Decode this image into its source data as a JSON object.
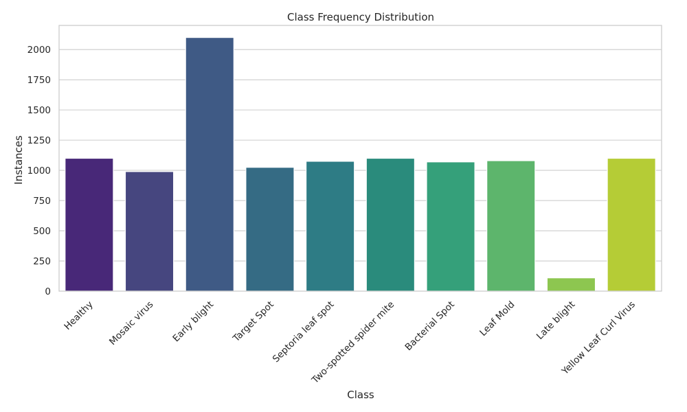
{
  "chart_data": {
    "type": "bar",
    "title": "Class Frequency Distribution",
    "xlabel": "Class",
    "ylabel": "Instances",
    "categories": [
      "Healthy",
      "Mosaic virus",
      "Early blight",
      "Target Spot",
      "Septoria leaf spot",
      "Two-spotted spider mite",
      "Bacterial Spot",
      "Leaf Mold",
      "Late blight",
      "Yellow Leaf Curl Virus"
    ],
    "values": [
      1100,
      990,
      2100,
      1025,
      1075,
      1100,
      1070,
      1080,
      110,
      1100
    ],
    "colors": [
      "#482878",
      "#46467f",
      "#3f5a85",
      "#356b84",
      "#2e7c85",
      "#2a8b7c",
      "#35a07a",
      "#5db56c",
      "#8dc650",
      "#b5cc36"
    ],
    "ylim": [
      0,
      2200
    ],
    "yticks": [
      0,
      250,
      500,
      750,
      1000,
      1250,
      1500,
      1750,
      2000
    ],
    "grid": true,
    "xtick_rotation": 45
  }
}
